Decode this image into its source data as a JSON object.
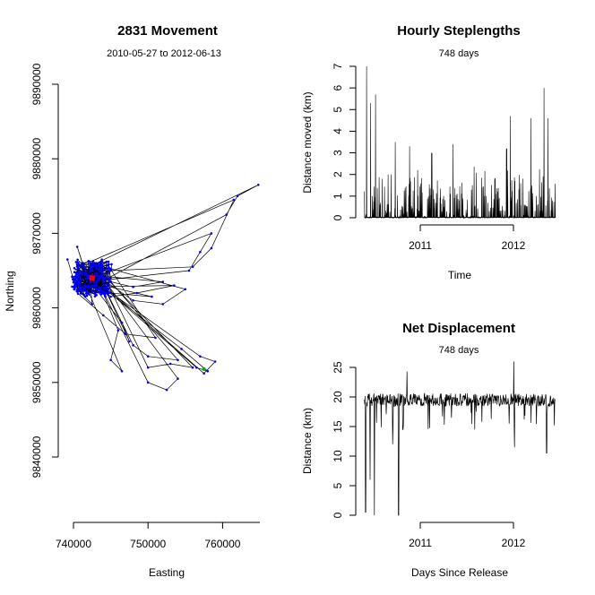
{
  "chart_data": [
    {
      "type": "line",
      "title": "2831 Movement",
      "subtitle": "2010-05-27 to 2012-06-13",
      "xlabel": "Easting",
      "ylabel": "Northing",
      "xlim": [
        736000,
        765000
      ],
      "ylim": [
        9830000,
        9900000
      ],
      "xticks": [
        740000,
        750000,
        760000
      ],
      "xtick_labels": [
        "740000",
        "750000",
        "760000"
      ],
      "yticks": [
        9840000,
        9850000,
        9860000,
        9870000,
        9880000,
        9890000
      ],
      "ytick_labels": [
        "9840000",
        "9850000",
        "9860000",
        "9870000",
        "9880000",
        "9890000"
      ],
      "line_color": "#000000",
      "point_color": "#0000ff",
      "start_color": "#ff0000",
      "track": [
        [
          739200,
          9866500
        ],
        [
          740500,
          9868200
        ],
        [
          741800,
          9864000
        ],
        [
          743500,
          9862500
        ],
        [
          745000,
          9863500
        ],
        [
          748000,
          9862800
        ],
        [
          752000,
          9863500
        ],
        [
          755500,
          9865000
        ],
        [
          757000,
          9867500
        ],
        [
          758500,
          9870000
        ],
        [
          760500,
          9872500
        ],
        [
          762000,
          9875000
        ],
        [
          764800,
          9876500
        ],
        [
          761500,
          9874500
        ],
        [
          758500,
          9868000
        ],
        [
          756000,
          9865500
        ],
        [
          753500,
          9863000
        ],
        [
          748500,
          9862000
        ],
        [
          745000,
          9861500
        ],
        [
          743000,
          9862500
        ],
        [
          746500,
          9858000
        ],
        [
          747500,
          9855500
        ],
        [
          750000,
          9852000
        ],
        [
          753000,
          9852500
        ],
        [
          756000,
          9852000
        ],
        [
          757500,
          9851200
        ],
        [
          759000,
          9852800
        ],
        [
          757000,
          9853500
        ],
        [
          754000,
          9853000
        ],
        [
          750000,
          9853500
        ],
        [
          748000,
          9855000
        ],
        [
          746000,
          9857000
        ],
        [
          745000,
          9853000
        ],
        [
          746500,
          9851500
        ],
        [
          750000,
          9850000
        ],
        [
          752500,
          9849000
        ],
        [
          754000,
          9850500
        ],
        [
          756500,
          9852000
        ],
        [
          758000,
          9851500
        ],
        [
          754500,
          9854500
        ],
        [
          751000,
          9856000
        ],
        [
          747000,
          9856500
        ],
        [
          744000,
          9859000
        ],
        [
          742500,
          9860500
        ],
        [
          741000,
          9862000
        ],
        [
          740000,
          9863500
        ],
        [
          742000,
          9864000
        ],
        [
          745000,
          9862000
        ],
        [
          750500,
          9861500
        ],
        [
          755000,
          9862500
        ],
        [
          752000,
          9860500
        ],
        [
          748000,
          9861000
        ]
      ],
      "start_point": [
        742500,
        9864000
      ],
      "end_point": [
        757500,
        9851800
      ]
    },
    {
      "type": "line",
      "title": "Hourly Steplengths",
      "subtitle": "748 days",
      "xlabel": "Time",
      "ylabel": "Distance moved (km)",
      "x_range_dates": [
        "2010-05-27",
        "2012-06-13"
      ],
      "ylim": [
        0,
        7
      ],
      "xticks": [
        "2011-01-01",
        "2012-01-01"
      ],
      "xtick_labels": [
        "2011",
        "2012"
      ],
      "yticks": [
        0,
        1,
        2,
        3,
        4,
        5,
        6,
        7
      ],
      "ytick_labels": [
        "0",
        "1",
        "2",
        "3",
        "4",
        "5",
        "6",
        "7"
      ],
      "baseline_km": 0.4,
      "typical_peak_km": 1.5,
      "spikes": [
        {
          "date": "2010-06-05",
          "value": 7.0
        },
        {
          "date": "2010-06-20",
          "value": 5.3
        },
        {
          "date": "2010-07-10",
          "value": 5.7
        },
        {
          "date": "2010-09-25",
          "value": 3.5
        },
        {
          "date": "2010-11-20",
          "value": 3.3
        },
        {
          "date": "2011-02-15",
          "value": 3.0
        },
        {
          "date": "2011-05-10",
          "value": 3.4
        },
        {
          "date": "2011-12-05",
          "value": 3.2
        },
        {
          "date": "2011-12-20",
          "value": 4.7
        },
        {
          "date": "2012-03-10",
          "value": 4.6
        },
        {
          "date": "2012-04-30",
          "value": 6.0
        },
        {
          "date": "2012-05-15",
          "value": 4.6
        }
      ]
    },
    {
      "type": "line",
      "title": "Net Displacement",
      "subtitle": "748 days",
      "xlabel": "Days Since Release",
      "ylabel": "Distance (km)",
      "x_range_dates": [
        "2010-05-27",
        "2012-06-13"
      ],
      "ylim": [
        0,
        25
      ],
      "xticks": [
        "2011-01-01",
        "2012-01-01"
      ],
      "xtick_labels": [
        "2011",
        "2012"
      ],
      "yticks": [
        0,
        5,
        10,
        15,
        20,
        25
      ],
      "ytick_labels": [
        "0",
        "5",
        "10",
        "15",
        "20",
        "25"
      ],
      "baseline_km": 19.5,
      "dips": [
        {
          "date": "2010-06-01",
          "value": 0.5
        },
        {
          "date": "2010-06-18",
          "value": 6.0
        },
        {
          "date": "2010-07-05",
          "value": 0.0
        },
        {
          "date": "2010-09-15",
          "value": 12.0
        },
        {
          "date": "2010-10-08",
          "value": 0.0
        },
        {
          "date": "2010-10-25",
          "value": 14.5
        },
        {
          "date": "2011-12-15",
          "value": 15.5
        },
        {
          "date": "2012-01-05",
          "value": 11.5
        },
        {
          "date": "2012-05-10",
          "value": 10.5
        }
      ],
      "peaks": [
        {
          "date": "2010-11-10",
          "value": 24.3
        },
        {
          "date": "2012-01-02",
          "value": 26.0
        }
      ]
    }
  ]
}
